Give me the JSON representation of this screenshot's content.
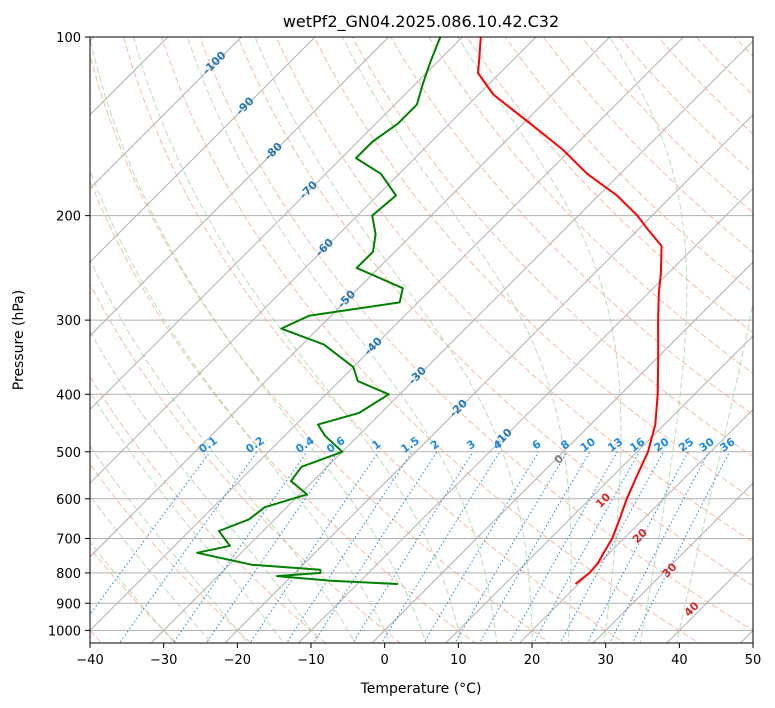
{
  "chart_data": {
    "type": "line",
    "title": "wetPf2_GN04.2025.086.10.42.C32",
    "xlabel": "Temperature (°C)",
    "ylabel": "Pressure (hPa)",
    "xlim": [
      -40,
      50
    ],
    "ylim": [
      1050,
      100
    ],
    "y_scale": "log",
    "skew": true,
    "grid": true,
    "x_ticks": [
      -40,
      -30,
      -20,
      -10,
      0,
      10,
      20,
      30,
      40,
      50
    ],
    "y_ticks": [
      100,
      200,
      300,
      400,
      500,
      600,
      700,
      800,
      900,
      1000
    ],
    "series": [
      {
        "role": "temperature",
        "color": "#ff0000",
        "points": [
          [
            835,
            19.6
          ],
          [
            800,
            20.0
          ],
          [
            770,
            19.8
          ],
          [
            740,
            19.2
          ],
          [
            700,
            18.4
          ],
          [
            650,
            16.8
          ],
          [
            600,
            15.0
          ],
          [
            550,
            13.3
          ],
          [
            500,
            11.5
          ],
          [
            450,
            8.8
          ],
          [
            400,
            5.0
          ],
          [
            350,
            0.4
          ],
          [
            300,
            -5.0
          ],
          [
            270,
            -8.6
          ],
          [
            250,
            -11.0
          ],
          [
            225,
            -14.6
          ],
          [
            210,
            -19.0
          ],
          [
            200,
            -22.0
          ],
          [
            185,
            -27.5
          ],
          [
            170,
            -34.5
          ],
          [
            155,
            -41.0
          ],
          [
            140,
            -49.0
          ],
          [
            125,
            -58.0
          ],
          [
            115,
            -63.0
          ],
          [
            108,
            -65.0
          ],
          [
            100,
            -67.5
          ]
        ]
      },
      {
        "role": "dewpoint",
        "color": "#008000",
        "points": [
          [
            835,
            -4.5
          ],
          [
            825,
            -14.0
          ],
          [
            810,
            -22.0
          ],
          [
            800,
            -16.5
          ],
          [
            790,
            -17.0
          ],
          [
            775,
            -27.0
          ],
          [
            740,
            -36.0
          ],
          [
            720,
            -32.5
          ],
          [
            680,
            -36.0
          ],
          [
            650,
            -33.5
          ],
          [
            620,
            -33.0
          ],
          [
            590,
            -29.0
          ],
          [
            560,
            -33.0
          ],
          [
            530,
            -33.5
          ],
          [
            500,
            -30.0
          ],
          [
            470,
            -34.5
          ],
          [
            450,
            -37.0
          ],
          [
            430,
            -33.0
          ],
          [
            400,
            -31.5
          ],
          [
            380,
            -37.5
          ],
          [
            360,
            -40.0
          ],
          [
            330,
            -47.0
          ],
          [
            310,
            -55.0
          ],
          [
            295,
            -53.0
          ],
          [
            280,
            -42.5
          ],
          [
            265,
            -44.0
          ],
          [
            245,
            -53.0
          ],
          [
            230,
            -53.0
          ],
          [
            215,
            -55.0
          ],
          [
            200,
            -58.0
          ],
          [
            185,
            -57.5
          ],
          [
            170,
            -62.5
          ],
          [
            160,
            -68.0
          ],
          [
            150,
            -68.0
          ],
          [
            140,
            -67.0
          ],
          [
            130,
            -67.0
          ],
          [
            120,
            -69.0
          ],
          [
            110,
            -71.0
          ],
          [
            100,
            -73.0
          ]
        ]
      }
    ],
    "isotherm_labels": [
      "-100",
      "-90",
      "-80",
      "-70",
      "-60",
      "-50",
      "-40",
      "-30",
      "-20",
      "-10"
    ],
    "mixing_ratio_labels": [
      "0.1",
      "0.2",
      "0.4",
      "0.6",
      "1",
      "1.5",
      "2",
      "3",
      "4",
      "6",
      "8",
      "10",
      "13",
      "16",
      "20",
      "25",
      "30",
      "36"
    ],
    "dry_adiabat_labels": [
      "0",
      "10",
      "20",
      "30",
      "40"
    ],
    "colors": {
      "isotherm": "#2477b4",
      "mixing_ratio": "#1e88e5",
      "dry_adiabat_label_zero": "#808080",
      "dry_adiabat_label": "#d62728",
      "dry_adiabat_line": "#f4a582",
      "moist_adiabat_line": "#98d098",
      "grid": "#b0b0b0"
    }
  }
}
